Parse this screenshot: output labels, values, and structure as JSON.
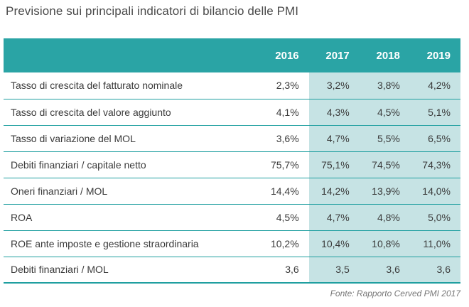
{
  "chart_data": {
    "type": "table",
    "title": "Previsione sui principali indicatori di bilancio delle PMI",
    "columns": [
      "",
      "2016",
      "2017",
      "2018",
      "2019"
    ],
    "forecast_columns": [
      "2017",
      "2018",
      "2019"
    ],
    "rows": [
      {
        "label": "Tasso di crescita del fatturato nominale",
        "values": [
          "2,3%",
          "3,2%",
          "3,8%",
          "4,2%"
        ]
      },
      {
        "label": "Tasso di crescita del valore aggiunto",
        "values": [
          "4,1%",
          "4,3%",
          "4,5%",
          "5,1%"
        ]
      },
      {
        "label": "Tasso di variazione del MOL",
        "values": [
          "3,6%",
          "4,7%",
          "5,5%",
          "6,5%"
        ]
      },
      {
        "label": "Debiti finanziari / capitale netto",
        "values": [
          "75,7%",
          "75,1%",
          "74,5%",
          "74,3%"
        ]
      },
      {
        "label": "Oneri finanziari / MOL",
        "values": [
          "14,4%",
          "14,2%",
          "13,9%",
          "14,0%"
        ]
      },
      {
        "label": "ROA",
        "values": [
          "4,5%",
          "4,7%",
          "4,8%",
          "5,0%"
        ]
      },
      {
        "label": "ROE ante imposte e gestione straordinaria",
        "values": [
          "10,2%",
          "10,4%",
          "10,8%",
          "11,0%"
        ]
      },
      {
        "label": "Debiti finanziari / MOL",
        "values": [
          "3,6",
          "3,5",
          "3,6",
          "3,6"
        ]
      }
    ],
    "source": "Fonte: Rapporto Cerved PMI 2017"
  },
  "colors": {
    "header_bg": "#2aa4a5",
    "forecast_bg": "#c6e3e4",
    "rule": "#1f9fa0"
  }
}
